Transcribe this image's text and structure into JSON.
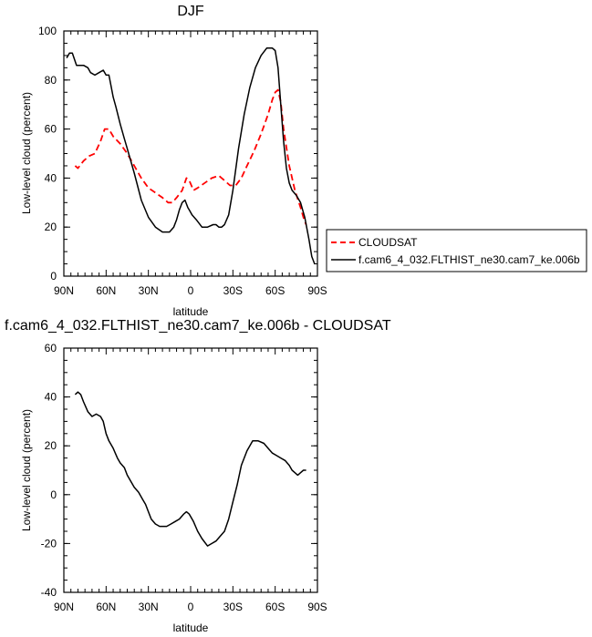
{
  "chart_data": [
    {
      "type": "line",
      "title": "DJF",
      "xlabel": "latitude",
      "ylabel": "Low-level cloud (percent)",
      "xlim": [
        90,
        -90
      ],
      "ylim": [
        0,
        100
      ],
      "xticks": [
        90,
        60,
        30,
        0,
        -30,
        -60,
        -90
      ],
      "xtick_labels": [
        "90N",
        "60N",
        "30N",
        "0",
        "30S",
        "60S",
        "90S"
      ],
      "yticks": [
        0,
        20,
        40,
        60,
        80,
        100
      ],
      "ytick_labels": [
        "0",
        "20",
        "40",
        "60",
        "80",
        "100"
      ],
      "legend_position": "right",
      "series": [
        {
          "name": "CLOUDSAT",
          "color": "#ff0000",
          "dash": "dashed",
          "x": [
            82,
            80,
            76,
            72,
            68,
            64,
            61,
            58,
            55,
            50,
            45,
            40,
            35,
            30,
            25,
            20,
            16,
            13,
            10,
            6,
            3,
            1,
            -2,
            -5,
            -10,
            -15,
            -20,
            -24,
            -28,
            -32,
            -36,
            -40,
            -45,
            -50,
            -55,
            -58,
            -60,
            -62,
            -64,
            -66,
            -70,
            -74,
            -78,
            -80,
            -82
          ],
          "y": [
            45,
            44,
            47,
            49,
            50,
            55,
            60,
            60,
            57,
            54,
            50,
            45,
            40,
            36,
            34,
            32,
            30,
            30,
            32,
            35,
            40,
            39,
            35,
            36,
            38,
            40,
            41,
            39,
            37,
            37,
            40,
            45,
            51,
            58,
            66,
            72,
            75,
            76,
            71,
            60,
            45,
            35,
            28,
            24,
            21
          ]
        },
        {
          "name": "f.cam6_4_032.FLTHIST_ne30.cam7_ke.006b",
          "color": "#000000",
          "dash": "solid",
          "x": [
            88,
            86,
            84,
            81,
            79,
            76,
            73,
            71,
            68,
            65,
            62,
            60,
            58,
            57,
            55,
            53,
            50,
            47,
            45,
            40,
            35,
            30,
            25,
            20,
            15,
            12,
            10,
            8,
            6,
            4,
            2,
            1,
            -1,
            -4,
            -8,
            -12,
            -16,
            -18,
            -20,
            -22,
            -24,
            -27,
            -30,
            -34,
            -38,
            -42,
            -46,
            -50,
            -54,
            -58,
            -60,
            -62,
            -64,
            -66,
            -68,
            -70,
            -72,
            -75,
            -78,
            -81,
            -84,
            -86,
            -88
          ],
          "y": [
            89,
            91,
            91,
            86,
            86,
            86,
            85,
            83,
            82,
            83,
            84,
            82,
            82,
            79,
            73,
            69,
            62,
            56,
            52,
            42,
            31,
            24,
            20,
            18,
            18,
            20,
            23,
            27,
            30,
            31,
            28,
            27,
            25,
            23,
            20,
            20,
            21,
            21,
            20,
            20,
            21,
            25,
            35,
            52,
            66,
            77,
            85,
            90,
            93,
            93,
            92,
            85,
            70,
            55,
            44,
            38,
            35,
            33,
            30,
            24,
            15,
            8,
            5
          ]
        }
      ]
    },
    {
      "type": "line",
      "title": "f.cam6_4_032.FLTHIST_ne30.cam7_ke.006b - CLOUDSAT",
      "xlabel": "latitude",
      "ylabel": "Low-level cloud (percent)",
      "xlim": [
        90,
        -90
      ],
      "ylim": [
        -40,
        60
      ],
      "xticks": [
        90,
        60,
        30,
        0,
        -30,
        -60,
        -90
      ],
      "xtick_labels": [
        "90N",
        "60N",
        "30N",
        "0",
        "30S",
        "60S",
        "90S"
      ],
      "yticks": [
        -40,
        -20,
        0,
        20,
        40,
        60
      ],
      "ytick_labels": [
        "-40",
        "-20",
        "0",
        "20",
        "40",
        "60"
      ],
      "series": [
        {
          "color": "#000000",
          "dash": "solid",
          "x": [
            82,
            80,
            78,
            76,
            73,
            70,
            67,
            64,
            62,
            60,
            58,
            55,
            52,
            50,
            47,
            45,
            42,
            40,
            37,
            34,
            32,
            30,
            28,
            25,
            22,
            20,
            17,
            14,
            11,
            8,
            5,
            3,
            1,
            -2,
            -5,
            -8,
            -12,
            -15,
            -18,
            -21,
            -24,
            -27,
            -30,
            -33,
            -36,
            -40,
            -44,
            -48,
            -52,
            -55,
            -58,
            -61,
            -64,
            -67,
            -70,
            -72,
            -74,
            -76,
            -78,
            -80,
            -82
          ],
          "y": [
            41,
            42,
            41,
            38,
            34,
            32,
            33,
            32,
            30,
            25,
            22,
            19,
            15,
            13,
            11,
            8,
            5,
            3,
            1,
            -2,
            -4,
            -7,
            -10,
            -12,
            -13,
            -13,
            -13,
            -12,
            -11,
            -10,
            -8,
            -7,
            -8,
            -11,
            -15,
            -18,
            -21,
            -20,
            -19,
            -17,
            -15,
            -10,
            -3,
            4,
            12,
            18,
            22,
            22,
            21,
            19,
            17,
            16,
            15,
            14,
            12,
            10,
            9,
            8,
            9,
            10,
            10
          ]
        }
      ]
    }
  ]
}
